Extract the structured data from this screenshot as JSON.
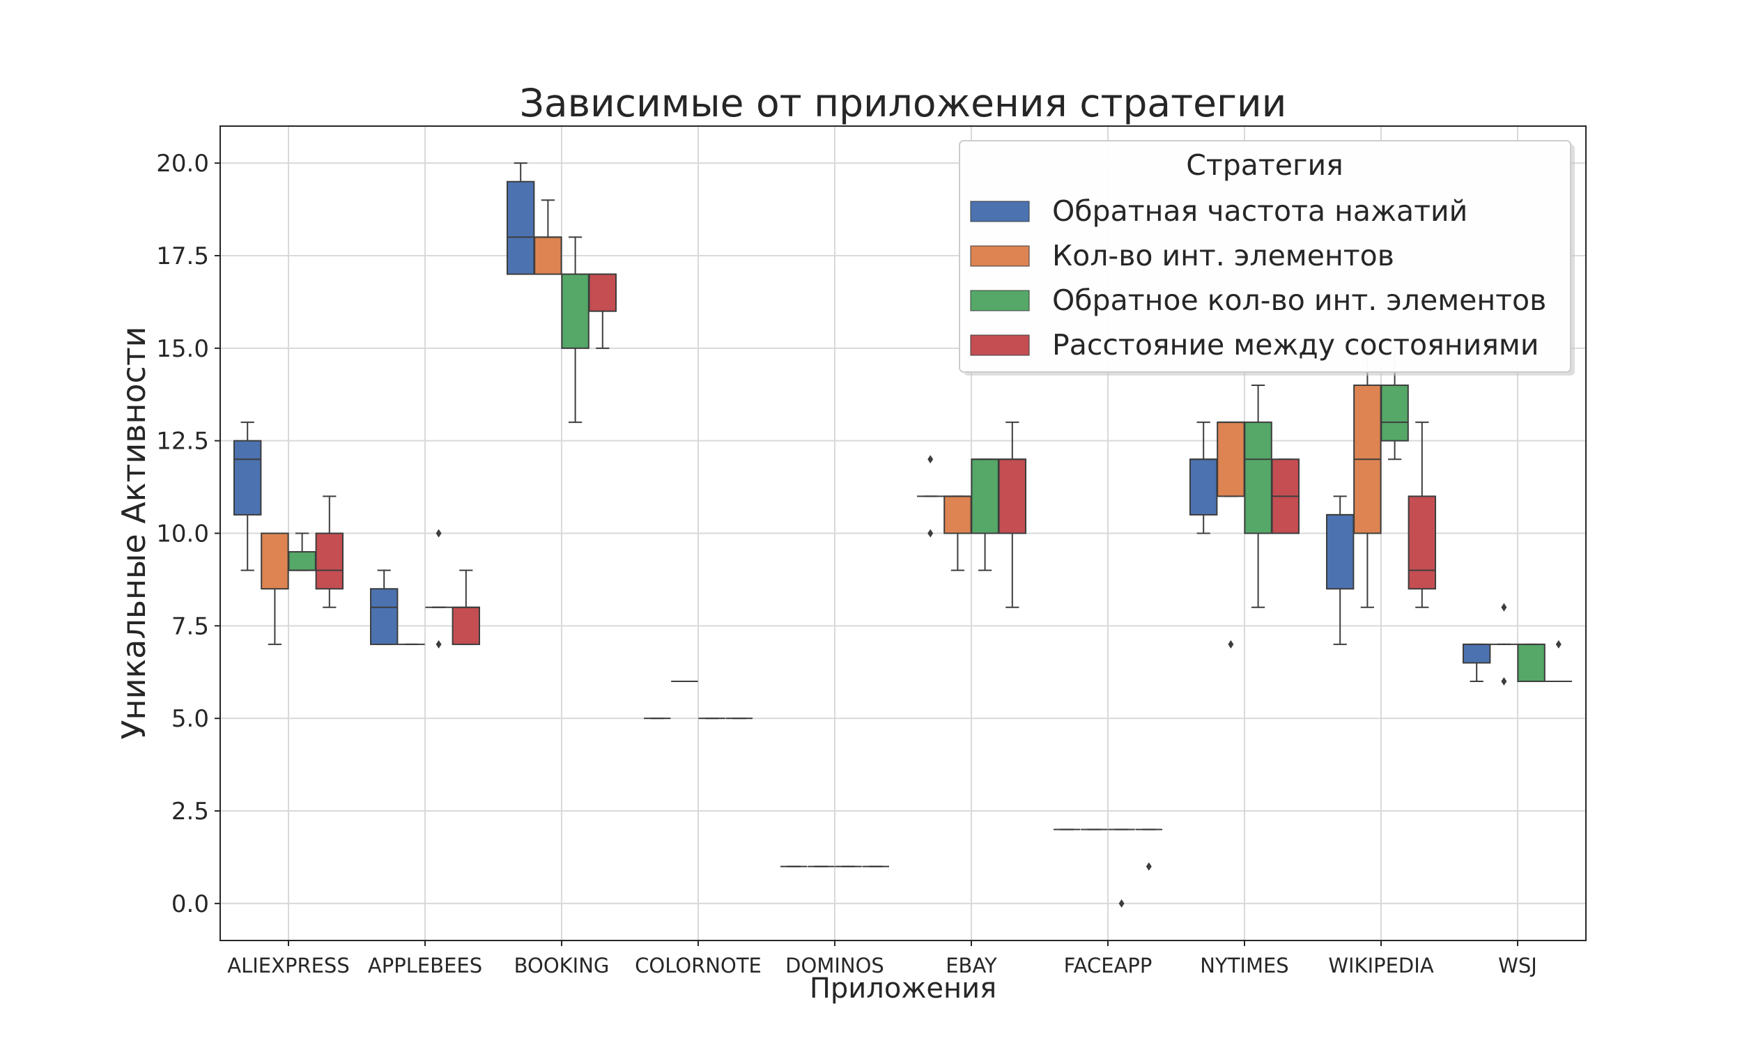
{
  "chart_data": {
    "type": "box",
    "title": "Зависимые от приложения стратегии",
    "xlabel": "Приложения",
    "ylabel": "Уникальные Активности",
    "ylim": [
      -1,
      21
    ],
    "yticks": [
      0.0,
      2.5,
      5.0,
      7.5,
      10.0,
      12.5,
      15.0,
      17.5,
      20.0
    ],
    "ytick_labels": [
      "0.0",
      "2.5",
      "5.0",
      "7.5",
      "10.0",
      "12.5",
      "15.0",
      "17.5",
      "20.0"
    ],
    "grid": true,
    "legend": {
      "title": "Стратегия",
      "position": "top-right",
      "entries": [
        "Обратная частота нажатий",
        "Кол-во инт. элементов",
        "Обратное кол-во инт. элементов",
        "Расстояние между состояниями"
      ]
    },
    "categories": [
      "ALIEXPRESS",
      "APPLEBEES",
      "BOOKING",
      "COLORNOTE",
      "DOMINOS",
      "EBAY",
      "FACEAPP",
      "NYTIMES",
      "WIKIPEDIA",
      "WSJ"
    ],
    "series": [
      {
        "name": "Обратная частота нажатий",
        "color": "#4c72b0",
        "stats": [
          {
            "whislo": 9,
            "q1": 10.5,
            "med": 12,
            "q3": 12.5,
            "whishi": 13,
            "fliers": []
          },
          {
            "whislo": 7,
            "q1": 7,
            "med": 8,
            "q3": 8.5,
            "whishi": 9,
            "fliers": []
          },
          {
            "whislo": 17,
            "q1": 17,
            "med": 18,
            "q3": 19.5,
            "whishi": 20,
            "fliers": []
          },
          {
            "whislo": 5,
            "q1": 5,
            "med": 5,
            "q3": 5,
            "whishi": 5,
            "fliers": []
          },
          {
            "whislo": 1,
            "q1": 1,
            "med": 1,
            "q3": 1,
            "whishi": 1,
            "fliers": []
          },
          {
            "whislo": 11,
            "q1": 11,
            "med": 11,
            "q3": 11,
            "whishi": 11,
            "fliers": [
              10,
              12
            ]
          },
          {
            "whislo": 2,
            "q1": 2,
            "med": 2,
            "q3": 2,
            "whishi": 2,
            "fliers": []
          },
          {
            "whislo": 10,
            "q1": 10.5,
            "med": 12,
            "q3": 12,
            "whishi": 13,
            "fliers": []
          },
          {
            "whislo": 7,
            "q1": 8.5,
            "med": 10.5,
            "q3": 10.5,
            "whishi": 11,
            "fliers": []
          },
          {
            "whislo": 6,
            "q1": 6.5,
            "med": 7,
            "q3": 7,
            "whishi": 7,
            "fliers": []
          }
        ]
      },
      {
        "name": "Кол-во инт. элементов",
        "color": "#dd8452",
        "stats": [
          {
            "whislo": 7,
            "q1": 8.5,
            "med": 10,
            "q3": 10,
            "whishi": 10,
            "fliers": []
          },
          {
            "whislo": 7,
            "q1": 7,
            "med": 7,
            "q3": 7,
            "whishi": 7,
            "fliers": []
          },
          {
            "whislo": 17,
            "q1": 17,
            "med": 18,
            "q3": 18,
            "whishi": 19,
            "fliers": []
          },
          {
            "whislo": 6,
            "q1": 6,
            "med": 6,
            "q3": 6,
            "whishi": 6,
            "fliers": []
          },
          {
            "whislo": 1,
            "q1": 1,
            "med": 1,
            "q3": 1,
            "whishi": 1,
            "fliers": []
          },
          {
            "whislo": 9,
            "q1": 10,
            "med": 11,
            "q3": 11,
            "whishi": 11,
            "fliers": []
          },
          {
            "whislo": 2,
            "q1": 2,
            "med": 2,
            "q3": 2,
            "whishi": 2,
            "fliers": []
          },
          {
            "whislo": 11,
            "q1": 11,
            "med": 13,
            "q3": 13,
            "whishi": 13,
            "fliers": [
              7
            ]
          },
          {
            "whislo": 8,
            "q1": 10,
            "med": 12,
            "q3": 14,
            "whishi": 15,
            "fliers": []
          },
          {
            "whislo": 7,
            "q1": 7,
            "med": 7,
            "q3": 7,
            "whishi": 7,
            "fliers": [
              6,
              8
            ]
          }
        ]
      },
      {
        "name": "Обратное кол-во инт. элементов",
        "color": "#55a868",
        "stats": [
          {
            "whislo": 9,
            "q1": 9,
            "med": 9,
            "q3": 9.5,
            "whishi": 10,
            "fliers": []
          },
          {
            "whislo": 8,
            "q1": 8,
            "med": 8,
            "q3": 8,
            "whishi": 8,
            "fliers": [
              7,
              10
            ]
          },
          {
            "whislo": 13,
            "q1": 15,
            "med": 17,
            "q3": 17,
            "whishi": 18,
            "fliers": []
          },
          {
            "whislo": 5,
            "q1": 5,
            "med": 5,
            "q3": 5,
            "whishi": 5,
            "fliers": []
          },
          {
            "whislo": 1,
            "q1": 1,
            "med": 1,
            "q3": 1,
            "whishi": 1,
            "fliers": []
          },
          {
            "whislo": 9,
            "q1": 10,
            "med": 12,
            "q3": 12,
            "whishi": 12,
            "fliers": []
          },
          {
            "whislo": 2,
            "q1": 2,
            "med": 2,
            "q3": 2,
            "whishi": 2,
            "fliers": [
              0
            ]
          },
          {
            "whislo": 8,
            "q1": 10,
            "med": 12,
            "q3": 13,
            "whishi": 14,
            "fliers": []
          },
          {
            "whislo": 12,
            "q1": 12.5,
            "med": 13,
            "q3": 14,
            "whishi": 15,
            "fliers": []
          },
          {
            "whislo": 6,
            "q1": 6,
            "med": 7,
            "q3": 7,
            "whishi": 7,
            "fliers": []
          }
        ]
      },
      {
        "name": "Расстояние между состояниями",
        "color": "#c44e52",
        "stats": [
          {
            "whislo": 8,
            "q1": 8.5,
            "med": 9,
            "q3": 10,
            "whishi": 11,
            "fliers": []
          },
          {
            "whislo": 7,
            "q1": 7,
            "med": 8,
            "q3": 8,
            "whishi": 9,
            "fliers": []
          },
          {
            "whislo": 15,
            "q1": 16,
            "med": 17,
            "q3": 17,
            "whishi": 17,
            "fliers": []
          },
          {
            "whislo": 5,
            "q1": 5,
            "med": 5,
            "q3": 5,
            "whishi": 5,
            "fliers": []
          },
          {
            "whislo": 1,
            "q1": 1,
            "med": 1,
            "q3": 1,
            "whishi": 1,
            "fliers": []
          },
          {
            "whislo": 8,
            "q1": 10,
            "med": 12,
            "q3": 12,
            "whishi": 13,
            "fliers": []
          },
          {
            "whislo": 2,
            "q1": 2,
            "med": 2,
            "q3": 2,
            "whishi": 2,
            "fliers": [
              1
            ]
          },
          {
            "whislo": 10,
            "q1": 10,
            "med": 11,
            "q3": 12,
            "whishi": 12,
            "fliers": []
          },
          {
            "whislo": 8,
            "q1": 8.5,
            "med": 9,
            "q3": 11,
            "whishi": 13,
            "fliers": []
          },
          {
            "whislo": 6,
            "q1": 6,
            "med": 6,
            "q3": 6,
            "whishi": 6,
            "fliers": [
              7
            ]
          }
        ]
      }
    ]
  }
}
